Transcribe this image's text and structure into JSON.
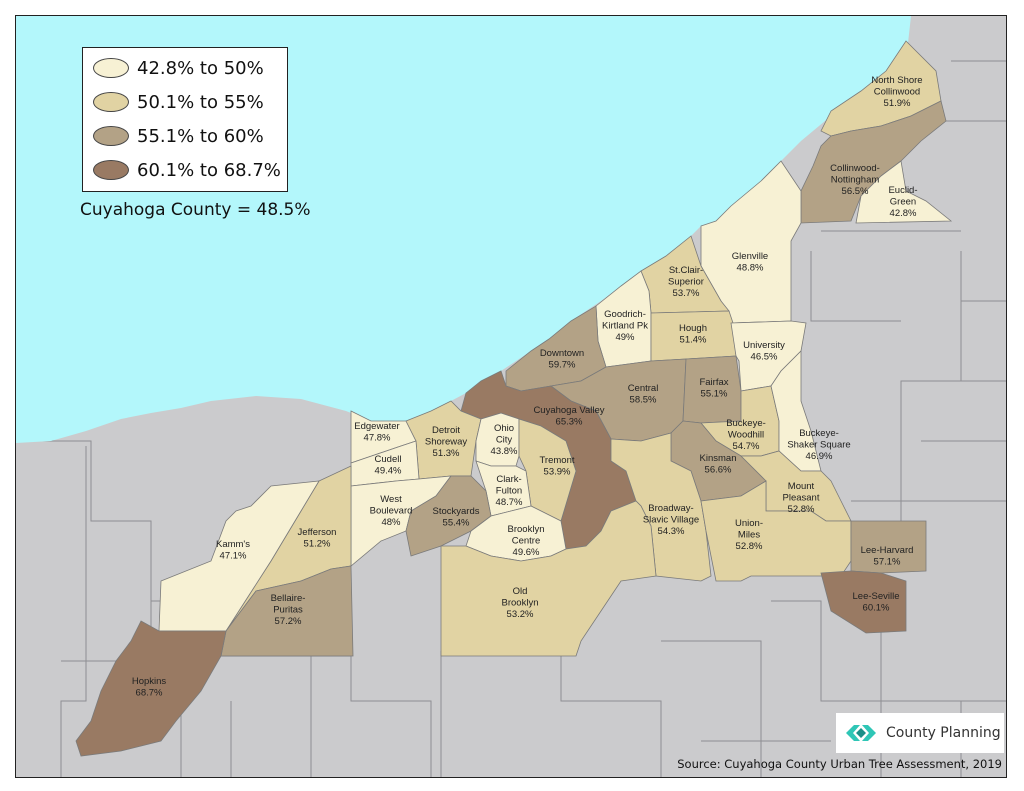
{
  "colors": {
    "lake": "#b3f7fb",
    "land": "#cbcbcd",
    "road_gray": "#bdbdc0",
    "class_1": "#f7f1d4",
    "class_2": "#e1d3a3",
    "class_3": "#b3a286",
    "class_4": "#997a63"
  },
  "legend": {
    "items": [
      {
        "label": "42.8% to 50%",
        "class": "class_1"
      },
      {
        "label": "50.1% to 55%",
        "class": "class_2"
      },
      {
        "label": "55.1% to 60%",
        "class": "class_3"
      },
      {
        "label": "60.1% to 68.7%",
        "class": "class_4"
      }
    ],
    "county_note": "Cuyahoga County = 48.5%"
  },
  "neighborhoods": [
    {
      "id": "north-shore-collinwood",
      "name": [
        "North Shore",
        "Collinwood"
      ],
      "value": "51.9%",
      "class": "class_2"
    },
    {
      "id": "collinwood-nottingham",
      "name": [
        "Collinwood-",
        "Nottingham"
      ],
      "value": "56.5%",
      "class": "class_3"
    },
    {
      "id": "euclid-green",
      "name": [
        "Euclid-",
        "Green"
      ],
      "value": "42.8%",
      "class": "class_1"
    },
    {
      "id": "glenville",
      "name": [
        "Glenville"
      ],
      "value": "48.8%",
      "class": "class_1"
    },
    {
      "id": "st-clair-superior",
      "name": [
        "St.Clair-",
        "Superior"
      ],
      "value": "53.7%",
      "class": "class_2"
    },
    {
      "id": "goodrich-kirtland-pk",
      "name": [
        "Goodrich-",
        "Kirtland Pk"
      ],
      "value": "49%",
      "class": "class_1"
    },
    {
      "id": "hough",
      "name": [
        "Hough"
      ],
      "value": "51.4%",
      "class": "class_2"
    },
    {
      "id": "university",
      "name": [
        "University"
      ],
      "value": "46.5%",
      "class": "class_1"
    },
    {
      "id": "downtown",
      "name": [
        "Downtown"
      ],
      "value": "59.7%",
      "class": "class_3"
    },
    {
      "id": "central",
      "name": [
        "Central"
      ],
      "value": "58.5%",
      "class": "class_3"
    },
    {
      "id": "fairfax",
      "name": [
        "Fairfax"
      ],
      "value": "55.1%",
      "class": "class_3"
    },
    {
      "id": "cuyahoga-valley",
      "name": [
        "Cuyahoga Valley"
      ],
      "value": "65.3%",
      "class": "class_4"
    },
    {
      "id": "buckeye-woodhill",
      "name": [
        "Buckeye-",
        "Woodhill"
      ],
      "value": "54.7%",
      "class": "class_2"
    },
    {
      "id": "buckeye-shaker-square",
      "name": [
        "Buckeye-",
        "Shaker Square"
      ],
      "value": "46.9%",
      "class": "class_1"
    },
    {
      "id": "kinsman",
      "name": [
        "Kinsman"
      ],
      "value": "56.6%",
      "class": "class_3"
    },
    {
      "id": "edgewater",
      "name": [
        "Edgewater"
      ],
      "value": "47.8%",
      "class": "class_1"
    },
    {
      "id": "detroit-shoreway",
      "name": [
        "Detroit",
        "Shoreway"
      ],
      "value": "51.3%",
      "class": "class_2"
    },
    {
      "id": "ohio-city",
      "name": [
        "Ohio",
        "City"
      ],
      "value": "43.8%",
      "class": "class_1"
    },
    {
      "id": "tremont",
      "name": [
        "Tremont"
      ],
      "value": "53.9%",
      "class": "class_2"
    },
    {
      "id": "cudell",
      "name": [
        "Cudell"
      ],
      "value": "49.4%",
      "class": "class_1"
    },
    {
      "id": "clark-fulton",
      "name": [
        "Clark-",
        "Fulton"
      ],
      "value": "48.7%",
      "class": "class_1"
    },
    {
      "id": "west-boulevard",
      "name": [
        "West",
        "Boulevard"
      ],
      "value": "48%",
      "class": "class_1"
    },
    {
      "id": "stockyards",
      "name": [
        "Stockyards"
      ],
      "value": "55.4%",
      "class": "class_3"
    },
    {
      "id": "broadway-slavic-village",
      "name": [
        "Broadway-",
        "Slavic Village"
      ],
      "value": "54.3%",
      "class": "class_2"
    },
    {
      "id": "mount-pleasant",
      "name": [
        "Mount",
        "Pleasant"
      ],
      "value": "52.8%",
      "class": "class_2"
    },
    {
      "id": "jefferson",
      "name": [
        "Jefferson"
      ],
      "value": "51.2%",
      "class": "class_2"
    },
    {
      "id": "brooklyn-centre",
      "name": [
        "Brooklyn",
        "Centre"
      ],
      "value": "49.6%",
      "class": "class_1"
    },
    {
      "id": "union-miles",
      "name": [
        "Union-",
        "Miles"
      ],
      "value": "52.8%",
      "class": "class_2"
    },
    {
      "id": "kamms",
      "name": [
        "Kamm's"
      ],
      "value": "47.1%",
      "class": "class_1"
    },
    {
      "id": "lee-harvard",
      "name": [
        "Lee-Harvard"
      ],
      "value": "57.1%",
      "class": "class_3"
    },
    {
      "id": "old-brooklyn",
      "name": [
        "Old",
        "Brooklyn"
      ],
      "value": "53.2%",
      "class": "class_2"
    },
    {
      "id": "lee-seville",
      "name": [
        "Lee-Seville"
      ],
      "value": "60.1%",
      "class": "class_4"
    },
    {
      "id": "bellaire-puritas",
      "name": [
        "Bellaire-",
        "Puritas"
      ],
      "value": "57.2%",
      "class": "class_3"
    },
    {
      "id": "hopkins",
      "name": [
        "Hopkins"
      ],
      "value": "68.7%",
      "class": "class_4"
    }
  ],
  "logo": {
    "text": "County Planning",
    "icon": "county-planning-logo-icon"
  },
  "source": "Source: Cuyahoga County Urban Tree Assessment, 2019"
}
